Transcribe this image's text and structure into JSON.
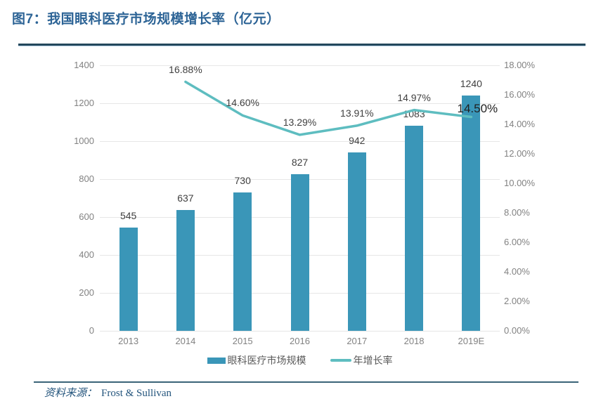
{
  "figure": {
    "title": "图7：我国眼科医疗市场规模增长率（亿元）",
    "source_label": "资料来源：",
    "source_value": "Frost & Sullivan"
  },
  "chart_data": {
    "type": "bar+line",
    "title": "我国眼科医疗市场规模增长率（亿元）",
    "categories": [
      "2013",
      "2014",
      "2015",
      "2016",
      "2017",
      "2018",
      "2019E"
    ],
    "series": [
      {
        "name": "眼科医疗市场规模",
        "type": "bar",
        "axis": "left",
        "values": [
          545,
          637,
          730,
          827,
          942,
          1083,
          1240
        ],
        "color": "#3a96b8"
      },
      {
        "name": "年增长率",
        "type": "line",
        "axis": "right",
        "values": [
          null,
          16.88,
          14.6,
          13.29,
          13.91,
          14.97,
          14.5
        ],
        "point_labels": [
          "",
          "16.88%",
          "14.60%",
          "13.29%",
          "13.91%",
          "14.97%",
          "14.50%"
        ],
        "color": "#5ebdc0"
      }
    ],
    "left_axis": {
      "min": 0,
      "max": 1400,
      "tick_labels": [
        "0",
        "200",
        "400",
        "600",
        "800",
        "1000",
        "1200",
        "1400"
      ]
    },
    "right_axis": {
      "min": 0,
      "max": 18,
      "tick_labels": [
        "0.00%",
        "2.00%",
        "4.00%",
        "6.00%",
        "8.00%",
        "10.00%",
        "12.00%",
        "14.00%",
        "16.00%",
        "18.00%"
      ]
    },
    "grid": true,
    "legend_position": "bottom"
  },
  "colors": {
    "title": "#2d6496",
    "top_border": "#24485c",
    "bar": "#3a96b8",
    "line": "#5ebdc0",
    "axis_text": "#828282",
    "data_label": "#3f3f3f",
    "gridline": "#e6e6e6",
    "source_rule": "#3a6478",
    "source_text": "#24557d"
  }
}
